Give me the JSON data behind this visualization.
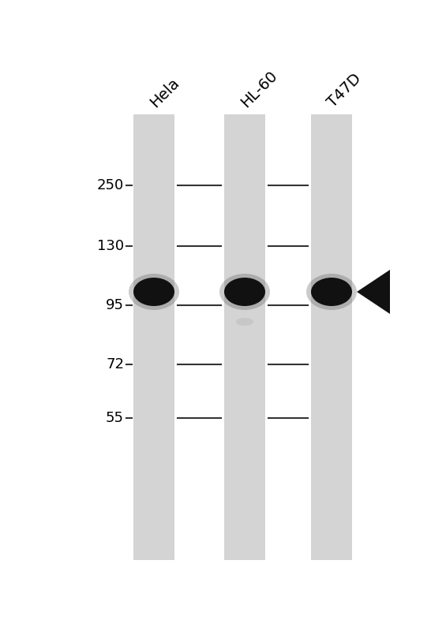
{
  "background_color": "#ffffff",
  "gel_background": "#d4d4d4",
  "lane_labels": [
    "Hela",
    "HL-60",
    "T47D"
  ],
  "mw_markers": [
    250,
    130,
    95,
    72,
    55
  ],
  "band_color": "#111111",
  "arrowhead_color": "#111111",
  "tick_color": "#333333",
  "label_fontsize": 14,
  "mw_fontsize": 13,
  "fig_width": 5.65,
  "fig_height": 8.0,
  "dpi": 100
}
